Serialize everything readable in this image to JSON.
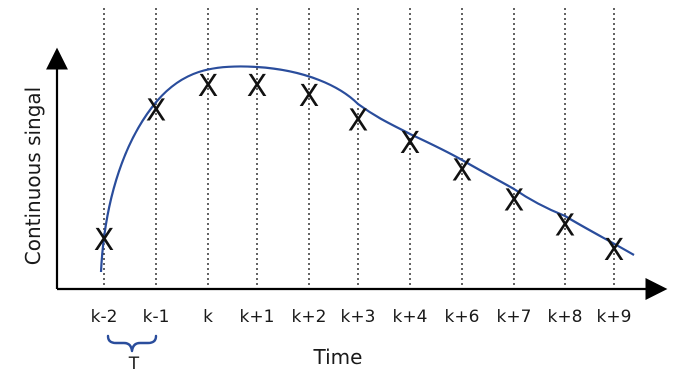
{
  "axes": {
    "y_label": "Continuous singal",
    "x_label": "Time"
  },
  "period_label": "T",
  "marker_glyph": "X",
  "colors": {
    "curve": "#2a4d9c",
    "axis": "#000000",
    "grid": "#222222"
  },
  "chart_data": {
    "type": "line",
    "categories": [
      "k-2",
      "k-1",
      "k",
      "k+1",
      "k+2",
      "k+3",
      "k+4",
      "k+6",
      "k+7",
      "k+8",
      "k+9"
    ],
    "values": [
      2.0,
      7.2,
      8.2,
      8.2,
      7.8,
      6.8,
      5.9,
      4.8,
      3.6,
      2.6,
      1.6
    ],
    "xlabel": "Time",
    "ylabel": "Continuous singal",
    "grid": "vertical dotted lines at each sample",
    "curve": "smooth continuous signal through sampled points",
    "annotation": "T"
  }
}
